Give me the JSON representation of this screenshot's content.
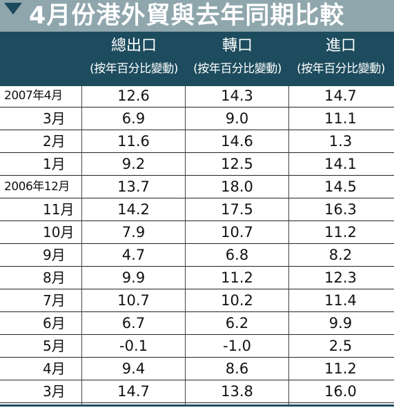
{
  "title": "4月份港外貿與去年同期比較",
  "columns": [
    {
      "name": "總出口",
      "unit": "(按年百分比變動)"
    },
    {
      "name": "轉口",
      "unit": "(按年百分比變動)"
    },
    {
      "name": "進口",
      "unit": "(按年百分比變動)"
    }
  ],
  "colors": {
    "title_bg": "#8fa6ad",
    "header_bg": "#1d4c5e",
    "text": "#111111"
  },
  "chart_data": {
    "type": "table",
    "title": "4月份港外貿與去年同期比較",
    "row_labels": [
      "2007年4月",
      "3月",
      "2月",
      "1月",
      "2006年12月",
      "11月",
      "10月",
      "9月",
      "8月",
      "7月",
      "6月",
      "5月",
      "4月",
      "3月"
    ],
    "series": [
      {
        "name": "總出口",
        "values": [
          "12.6",
          "6.9",
          "11.6",
          "9.2",
          "13.7",
          "14.2",
          "7.9",
          "4.7",
          "9.9",
          "10.7",
          "6.7",
          "-0.1",
          "9.4",
          "14.7"
        ]
      },
      {
        "name": "轉口",
        "values": [
          "14.3",
          "9.0",
          "14.6",
          "12.5",
          "18.0",
          "17.5",
          "10.7",
          "6.8",
          "11.2",
          "10.2",
          "6.2",
          "-1.0",
          "8.6",
          "13.8"
        ]
      },
      {
        "name": "進口",
        "values": [
          "14.7",
          "11.1",
          "1.3",
          "14.1",
          "14.5",
          "16.3",
          "11.2",
          "8.2",
          "12.3",
          "11.4",
          "9.9",
          "2.5",
          "11.2",
          "16.0"
        ]
      }
    ]
  }
}
